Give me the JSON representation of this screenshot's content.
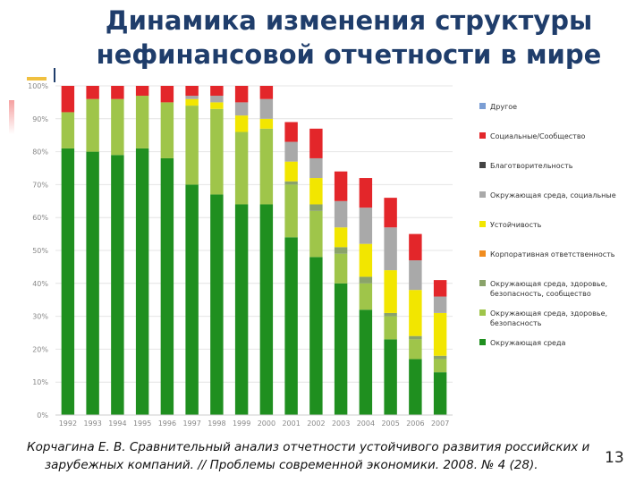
{
  "slide": {
    "title_line1": "Динамика изменения структуры",
    "title_line2": "нефинансовой отчетности в мире",
    "caption_line1": "Корчагина Е. В. Сравнительный анализ отчетности устойчивого развития российских и",
    "caption_line2": "зарубежных компаний. // Проблемы современной экономики. 2008. № 4 (28).",
    "page_number": "13"
  },
  "chart_data": {
    "type": "bar",
    "stacked": true,
    "categories": [
      "1992",
      "1993",
      "1994",
      "1995",
      "1996",
      "1997",
      "1998",
      "1999",
      "2000",
      "2001",
      "2002",
      "2003",
      "2004",
      "2005",
      "2006",
      "2007"
    ],
    "ylim": [
      0,
      100
    ],
    "yticks": [
      "0%",
      "10%",
      "20%",
      "30%",
      "40%",
      "50%",
      "60%",
      "70%",
      "80%",
      "90%",
      "100%"
    ],
    "grid": true,
    "legend_position": "right",
    "series": [
      {
        "name": "Окружающая среда",
        "color": "#1f8f1f",
        "values": [
          81,
          80,
          79,
          81,
          78,
          70,
          67,
          64,
          64,
          54,
          48,
          40,
          32,
          23,
          17,
          13
        ]
      },
      {
        "name": "Окружающая среда, здоровье, безопасность",
        "color": "#9fc54a",
        "values": [
          11,
          16,
          17,
          16,
          17,
          24,
          26,
          22,
          23,
          16,
          14,
          9,
          8,
          7,
          6,
          4
        ]
      },
      {
        "name": "Окружающая среда, здоровье, безопасность, сообщество",
        "color": "#8aa36a",
        "values": [
          0,
          0,
          0,
          0,
          0,
          0,
          0,
          0,
          0,
          1,
          2,
          2,
          2,
          1,
          1,
          1
        ]
      },
      {
        "name": "Корпоративная ответственность",
        "color": "#f08c1e",
        "values": [
          0,
          0,
          0,
          0,
          0,
          0,
          0,
          0,
          0,
          0,
          0,
          0,
          0,
          0,
          0,
          0
        ]
      },
      {
        "name": "Устойчивость",
        "color": "#f2e600",
        "values": [
          0,
          0,
          0,
          0,
          0,
          2,
          2,
          5,
          3,
          6,
          8,
          6,
          10,
          13,
          14,
          13
        ]
      },
      {
        "name": "Окружающая среда, социальные",
        "color": "#a9a9a9",
        "values": [
          0,
          0,
          0,
          0,
          0,
          1,
          2,
          4,
          6,
          6,
          6,
          8,
          11,
          13,
          9,
          5
        ]
      },
      {
        "name": "Благотворительность",
        "color": "#444444",
        "values": [
          0,
          0,
          0,
          0,
          0,
          0,
          0,
          0,
          0,
          0,
          0,
          0,
          0,
          0,
          0,
          0
        ]
      },
      {
        "name": "Социальные/Сообщество",
        "color": "#e3262a",
        "values": [
          8,
          4,
          4,
          3,
          5,
          3,
          3,
          5,
          4,
          6,
          9,
          9,
          9,
          9,
          8,
          5
        ]
      },
      {
        "name": "Другое",
        "color": "#7b9ed4",
        "values": [
          0,
          0,
          0,
          0,
          0,
          0,
          0,
          0,
          0,
          0,
          0,
          0,
          0,
          0,
          0,
          0
        ]
      }
    ]
  }
}
